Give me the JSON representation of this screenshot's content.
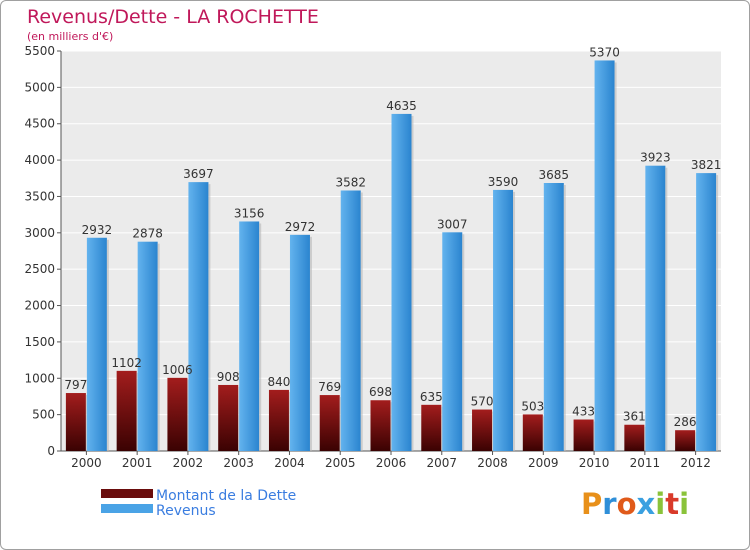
{
  "chart_data": {
    "type": "bar",
    "title": "Revenus/Dette - LA ROCHETTE",
    "subtitle": "(en milliers d'€)",
    "categories": [
      "2000",
      "2001",
      "2002",
      "2003",
      "2004",
      "2005",
      "2006",
      "2007",
      "2008",
      "2009",
      "2010",
      "2011",
      "2012"
    ],
    "series": [
      {
        "name": "Montant de la Dette",
        "color": "#7a1010",
        "values": [
          797,
          1102,
          1006,
          908,
          840,
          769,
          698,
          635,
          570,
          503,
          433,
          361,
          286
        ]
      },
      {
        "name": "Revenus",
        "color": "#4aa3e6",
        "values": [
          2932,
          2878,
          3697,
          3156,
          2972,
          3582,
          4635,
          3007,
          3590,
          3685,
          5370,
          3923,
          3821
        ]
      }
    ],
    "y_ticks": [
      "0",
      "500",
      "1000",
      "1500",
      "2000",
      "2500",
      "3000",
      "3500",
      "4000",
      "4500",
      "5000",
      "5500"
    ],
    "ylim": [
      0,
      5500
    ],
    "grid": true,
    "legend": "bottom-left"
  },
  "logo": {
    "text": "Proxiti"
  }
}
